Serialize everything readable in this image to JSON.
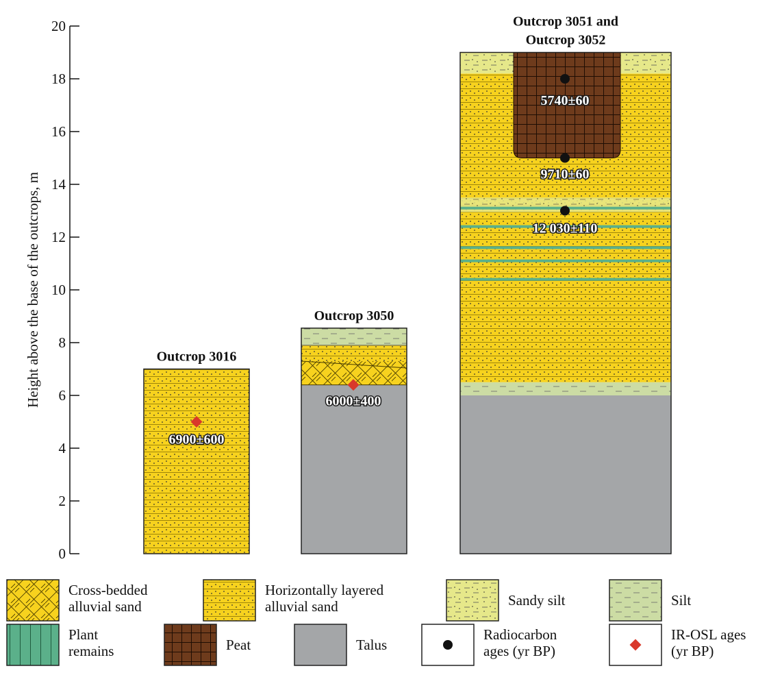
{
  "y_axis": {
    "label": "Height above the base of the outcrops, m",
    "ticks": [
      0,
      2,
      4,
      6,
      8,
      10,
      12,
      14,
      16,
      18,
      20
    ],
    "range": [
      0,
      20
    ]
  },
  "outcrops": [
    {
      "id": "o3016",
      "title_lines": [
        "Outcrop 3016"
      ],
      "top": 7.0,
      "layers": [
        {
          "type": "horizontal_sand",
          "from": 0,
          "to": 7.0
        }
      ],
      "dates": [
        {
          "method": "IR-OSL",
          "label": "6900±600",
          "height": 5.0
        }
      ]
    },
    {
      "id": "o3050",
      "title_lines": [
        "Outcrop 3050"
      ],
      "top": 8.55,
      "layers": [
        {
          "type": "talus",
          "from": 0,
          "to": 6.4
        },
        {
          "type": "cross_sand",
          "from": 6.4,
          "to": 7.3
        },
        {
          "type": "horizontal_sand",
          "from": 7.3,
          "to": 7.9
        },
        {
          "type": "silt",
          "from": 7.9,
          "to": 8.55
        }
      ],
      "dates": [
        {
          "method": "IR-OSL",
          "label": "6000±400",
          "height": 6.4
        }
      ]
    },
    {
      "id": "o3051",
      "title_lines": [
        "Outcrop 3051 and",
        "Outcrop 3052"
      ],
      "top": 19.0,
      "layers": [
        {
          "type": "talus",
          "from": 0,
          "to": 6.0
        },
        {
          "type": "silt",
          "from": 6.0,
          "to": 6.5
        },
        {
          "type": "horizontal_sand",
          "from": 6.5,
          "to": 18.2
        },
        {
          "type": "sandy_silt",
          "from": 18.2,
          "to": 19.0
        }
      ],
      "plant_bands": [
        10.4,
        11.1,
        11.6,
        12.4,
        13.1
      ],
      "sandy_silt_band": {
        "from": 12.95,
        "to": 13.5
      },
      "peat": {
        "from": 15.0,
        "to": 19.0
      },
      "dates": [
        {
          "method": "Radiocarbon",
          "label": "5740±60",
          "height": 18.0
        },
        {
          "method": "Radiocarbon",
          "label": "9710±60",
          "height": 15.0
        },
        {
          "method": "Radiocarbon",
          "label": "12 030±110",
          "height": 13.0
        }
      ]
    }
  ],
  "legend": [
    {
      "key": "cross_sand",
      "lines": [
        "Cross-bedded",
        "alluvial sand"
      ]
    },
    {
      "key": "horizontal_sand",
      "lines": [
        "Horizontally layered",
        "alluvial sand"
      ]
    },
    {
      "key": "sandy_silt",
      "lines": [
        "Sandy silt"
      ]
    },
    {
      "key": "silt",
      "lines": [
        "Silt"
      ]
    },
    {
      "key": "plant",
      "lines": [
        "Plant",
        "remains"
      ]
    },
    {
      "key": "peat",
      "lines": [
        "Peat"
      ]
    },
    {
      "key": "talus",
      "lines": [
        "Talus"
      ]
    },
    {
      "key": "radiocarbon",
      "lines": [
        "Radiocarbon",
        "ages (yr BP)"
      ]
    },
    {
      "key": "irosl",
      "lines": [
        "IR-OSL ages",
        "(yr BP)"
      ]
    }
  ],
  "colors": {
    "sand": "#f7d21e",
    "sandy_silt": "#e6e88a",
    "silt": "#ccdca4",
    "talus": "#a4a6a8",
    "peat": "#6e3b1c",
    "plant": "#5bb08a",
    "radiocarbon": "#111111",
    "irosl": "#d9392b"
  }
}
